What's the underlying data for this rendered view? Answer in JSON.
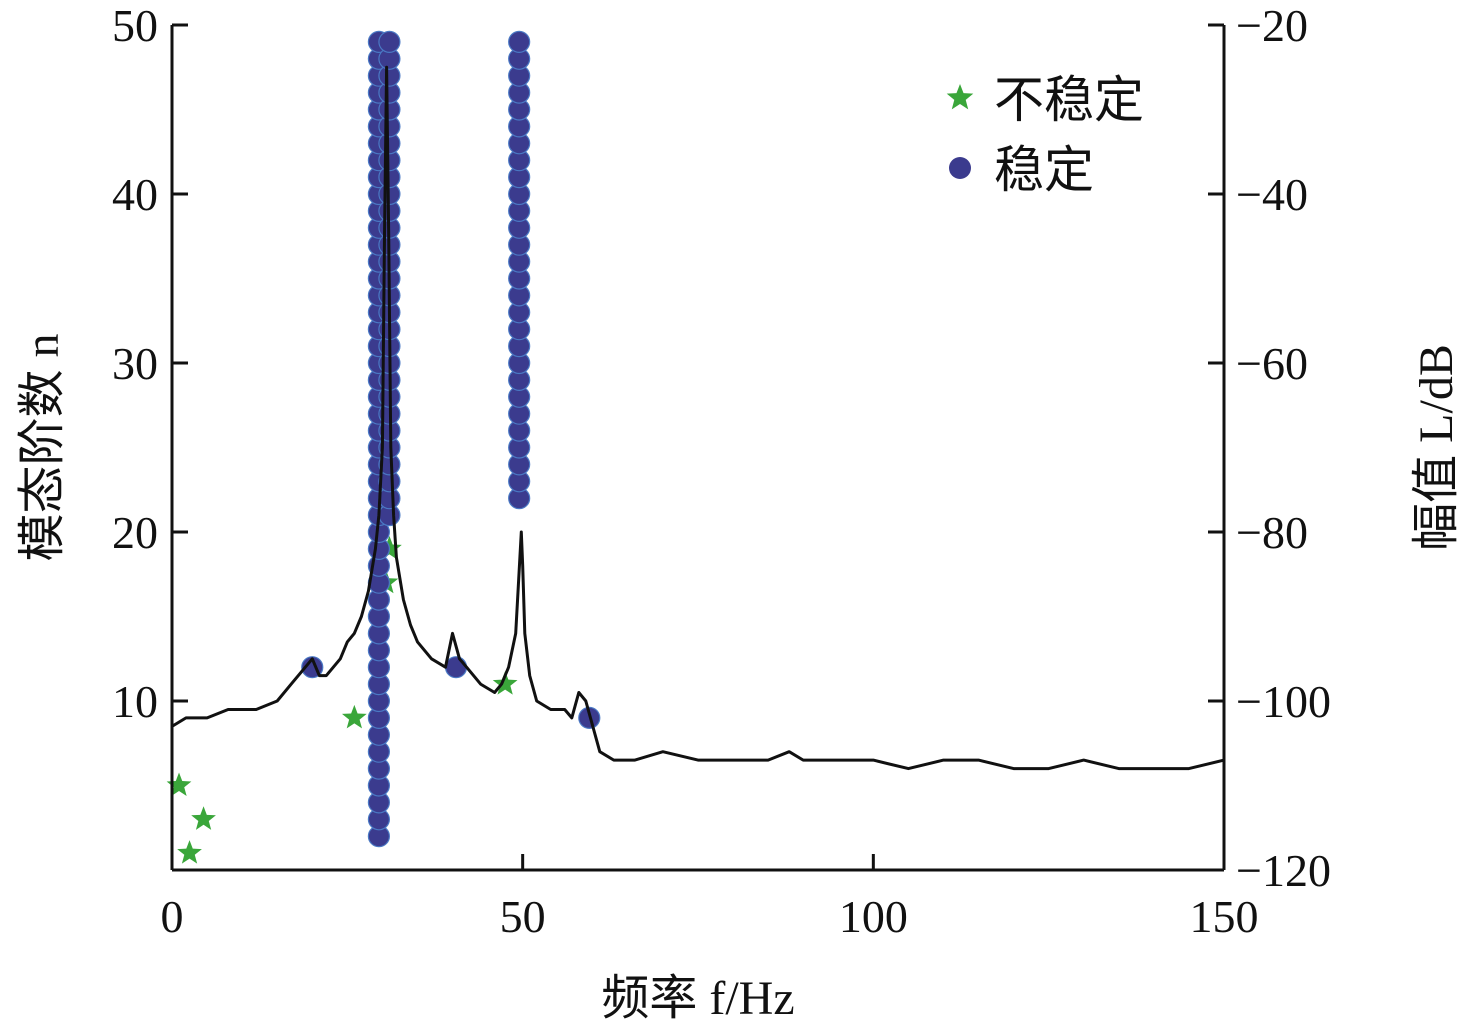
{
  "chart_data": {
    "type": "scatter",
    "title": "",
    "xlabel": "频率 f/Hz",
    "ylabel_left": "模态阶数 n",
    "ylabel_right": "幅值 L/dB",
    "xlim": [
      0,
      150
    ],
    "ylim_left": [
      0,
      50
    ],
    "ylim_right": [
      -120,
      -20
    ],
    "xticks": [
      "0",
      "50",
      "100",
      "150"
    ],
    "yticks_left": [
      "10",
      "20",
      "30",
      "40",
      "50"
    ],
    "yticks_right": [
      "−120",
      "−100",
      "−80",
      "−60",
      "−40",
      "−20"
    ],
    "legend": {
      "position": "top-right",
      "items": [
        {
          "label": "不稳定",
          "marker": "star",
          "color": "#3aa63a"
        },
        {
          "label": "稳定",
          "marker": "circle",
          "color": "#3b3b8e"
        }
      ]
    },
    "series": [
      {
        "name": "不稳定",
        "color": "#3aa63a",
        "marker": "star",
        "axis": "left",
        "points": [
          [
            1,
            5
          ],
          [
            2.5,
            1
          ],
          [
            4.5,
            3
          ],
          [
            26,
            9
          ],
          [
            30.5,
            17
          ],
          [
            31,
            19
          ],
          [
            47.5,
            11
          ]
        ]
      },
      {
        "name": "稳定",
        "color": "#3b3b8e",
        "marker": "circle",
        "axis": "left",
        "points": [
          [
            20,
            12
          ],
          [
            29.5,
            2
          ],
          [
            29.5,
            3
          ],
          [
            29.5,
            4
          ],
          [
            29.5,
            5
          ],
          [
            29.5,
            6
          ],
          [
            29.5,
            7
          ],
          [
            29.5,
            8
          ],
          [
            29.5,
            9
          ],
          [
            29.5,
            10
          ],
          [
            29.5,
            11
          ],
          [
            29.5,
            12
          ],
          [
            29.5,
            13
          ],
          [
            29.5,
            14
          ],
          [
            29.5,
            15
          ],
          [
            29.5,
            16
          ],
          [
            29.5,
            17
          ],
          [
            29.5,
            18
          ],
          [
            29.5,
            19
          ],
          [
            29.5,
            20
          ],
          [
            29.5,
            21
          ],
          [
            29.5,
            22
          ],
          [
            29.5,
            23
          ],
          [
            29.5,
            24
          ],
          [
            29.5,
            25
          ],
          [
            29.5,
            26
          ],
          [
            29.5,
            27
          ],
          [
            29.5,
            28
          ],
          [
            29.5,
            29
          ],
          [
            29.5,
            30
          ],
          [
            29.5,
            31
          ],
          [
            29.5,
            32
          ],
          [
            29.5,
            33
          ],
          [
            29.5,
            34
          ],
          [
            29.5,
            35
          ],
          [
            29.5,
            36
          ],
          [
            29.5,
            37
          ],
          [
            29.5,
            38
          ],
          [
            29.5,
            39
          ],
          [
            29.5,
            40
          ],
          [
            29.5,
            41
          ],
          [
            29.5,
            42
          ],
          [
            29.5,
            43
          ],
          [
            29.5,
            44
          ],
          [
            29.5,
            45
          ],
          [
            29.5,
            46
          ],
          [
            29.5,
            47
          ],
          [
            29.5,
            48
          ],
          [
            29.5,
            49
          ],
          [
            31,
            21
          ],
          [
            31,
            22
          ],
          [
            31,
            23
          ],
          [
            31,
            24
          ],
          [
            31,
            25
          ],
          [
            31,
            26
          ],
          [
            31,
            27
          ],
          [
            31,
            28
          ],
          [
            31,
            29
          ],
          [
            31,
            30
          ],
          [
            31,
            31
          ],
          [
            31,
            32
          ],
          [
            31,
            33
          ],
          [
            31,
            34
          ],
          [
            31,
            35
          ],
          [
            31,
            36
          ],
          [
            31,
            37
          ],
          [
            31,
            38
          ],
          [
            31,
            39
          ],
          [
            31,
            40
          ],
          [
            31,
            41
          ],
          [
            31,
            42
          ],
          [
            31,
            43
          ],
          [
            31,
            44
          ],
          [
            31,
            45
          ],
          [
            31,
            46
          ],
          [
            31,
            47
          ],
          [
            31,
            48
          ],
          [
            31,
            49
          ],
          [
            40.5,
            12
          ],
          [
            49.5,
            22
          ],
          [
            49.5,
            23
          ],
          [
            49.5,
            24
          ],
          [
            49.5,
            25
          ],
          [
            49.5,
            26
          ],
          [
            49.5,
            27
          ],
          [
            49.5,
            28
          ],
          [
            49.5,
            29
          ],
          [
            49.5,
            30
          ],
          [
            49.5,
            31
          ],
          [
            49.5,
            32
          ],
          [
            49.5,
            33
          ],
          [
            49.5,
            34
          ],
          [
            49.5,
            35
          ],
          [
            49.5,
            36
          ],
          [
            49.5,
            37
          ],
          [
            49.5,
            38
          ],
          [
            49.5,
            39
          ],
          [
            49.5,
            40
          ],
          [
            49.5,
            41
          ],
          [
            49.5,
            42
          ],
          [
            49.5,
            43
          ],
          [
            49.5,
            44
          ],
          [
            49.5,
            45
          ],
          [
            49.5,
            46
          ],
          [
            49.5,
            47
          ],
          [
            49.5,
            48
          ],
          [
            49.5,
            49
          ],
          [
            59.5,
            9
          ]
        ]
      },
      {
        "type": "line",
        "axis": "right",
        "color": "#111111",
        "points": [
          [
            0,
            -103
          ],
          [
            2,
            -102
          ],
          [
            5,
            -102
          ],
          [
            8,
            -101
          ],
          [
            12,
            -101
          ],
          [
            15,
            -100
          ],
          [
            17,
            -98
          ],
          [
            19,
            -96
          ],
          [
            20,
            -95
          ],
          [
            21,
            -97
          ],
          [
            22,
            -97
          ],
          [
            23,
            -96
          ],
          [
            24,
            -95
          ],
          [
            25,
            -93
          ],
          [
            26,
            -92
          ],
          [
            27,
            -90
          ],
          [
            28,
            -87
          ],
          [
            29,
            -82
          ],
          [
            29.5,
            -78
          ],
          [
            30,
            -70
          ],
          [
            30.3,
            -45
          ],
          [
            30.6,
            -25
          ],
          [
            30.9,
            -45
          ],
          [
            31.2,
            -70
          ],
          [
            31.6,
            -78
          ],
          [
            32,
            -83
          ],
          [
            33,
            -88
          ],
          [
            34,
            -91
          ],
          [
            35,
            -93
          ],
          [
            37,
            -95
          ],
          [
            39,
            -96
          ],
          [
            40,
            -92
          ],
          [
            41,
            -95
          ],
          [
            42,
            -96
          ],
          [
            44,
            -98
          ],
          [
            46,
            -99
          ],
          [
            47,
            -98
          ],
          [
            48,
            -96
          ],
          [
            49,
            -92
          ],
          [
            49.8,
            -80
          ],
          [
            50,
            -84
          ],
          [
            50.3,
            -92
          ],
          [
            51,
            -97
          ],
          [
            52,
            -100
          ],
          [
            54,
            -101
          ],
          [
            56,
            -101
          ],
          [
            57,
            -102
          ],
          [
            58,
            -99
          ],
          [
            59,
            -100
          ],
          [
            60,
            -103
          ],
          [
            61,
            -106
          ],
          [
            63,
            -107
          ],
          [
            66,
            -107
          ],
          [
            70,
            -106
          ],
          [
            75,
            -107
          ],
          [
            80,
            -107
          ],
          [
            85,
            -107
          ],
          [
            88,
            -106
          ],
          [
            90,
            -107
          ],
          [
            95,
            -107
          ],
          [
            100,
            -107
          ],
          [
            105,
            -108
          ],
          [
            110,
            -107
          ],
          [
            115,
            -107
          ],
          [
            120,
            -108
          ],
          [
            125,
            -108
          ],
          [
            130,
            -107
          ],
          [
            135,
            -108
          ],
          [
            140,
            -108
          ],
          [
            145,
            -108
          ],
          [
            150,
            -107
          ]
        ]
      }
    ]
  }
}
